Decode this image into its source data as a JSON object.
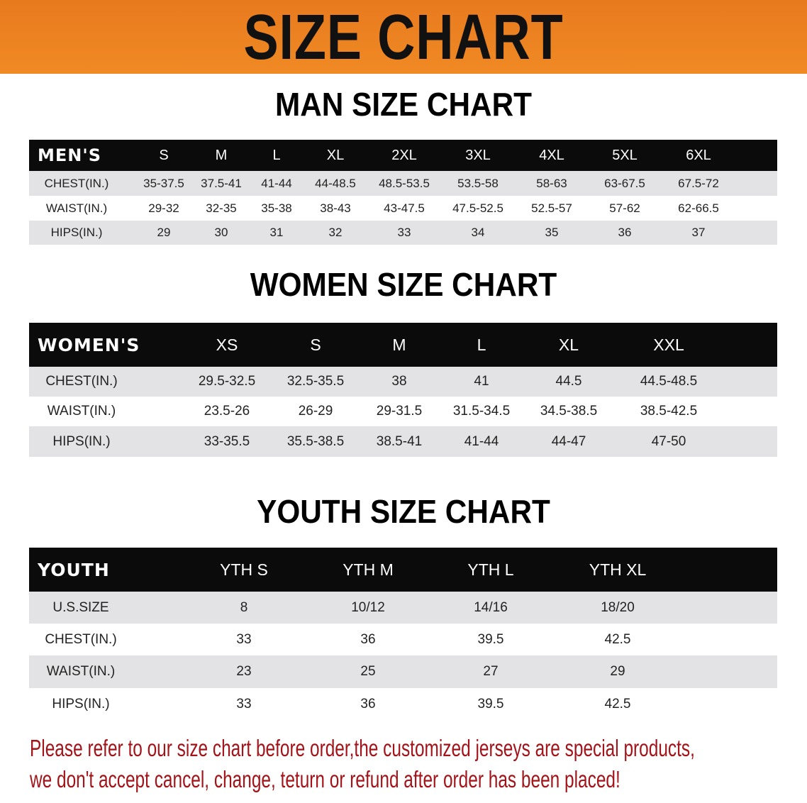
{
  "banner_title": "SIZE CHART",
  "men": {
    "title": "MAN SIZE CHART",
    "corner": "MEN'S",
    "sizes": [
      "S",
      "M",
      "L",
      "XL",
      "2XL",
      "3XL",
      "4XL",
      "5XL",
      "6XL"
    ],
    "rows": [
      {
        "label": "CHEST(IN.)",
        "values": [
          "35-37.5",
          "37.5-41",
          "41-44",
          "44-48.5",
          "48.5-53.5",
          "53.5-58",
          "58-63",
          "63-67.5",
          "67.5-72"
        ]
      },
      {
        "label": "WAIST(IN.)",
        "values": [
          "29-32",
          "32-35",
          "35-38",
          "38-43",
          "43-47.5",
          "47.5-52.5",
          "52.5-57",
          "57-62",
          "62-66.5"
        ]
      },
      {
        "label": "HIPS(IN.)",
        "values": [
          "29",
          "30",
          "31",
          "32",
          "33",
          "34",
          "35",
          "36",
          "37"
        ]
      }
    ]
  },
  "women": {
    "title": "WOMEN SIZE CHART",
    "corner": "WOMEN'S",
    "sizes": [
      "XS",
      "S",
      "M",
      "L",
      "XL",
      "XXL"
    ],
    "rows": [
      {
        "label": "CHEST(IN.)",
        "values": [
          "29.5-32.5",
          "32.5-35.5",
          "38",
          "41",
          "44.5",
          "44.5-48.5"
        ]
      },
      {
        "label": "WAIST(IN.)",
        "values": [
          "23.5-26",
          "26-29",
          "29-31.5",
          "31.5-34.5",
          "34.5-38.5",
          "38.5-42.5"
        ]
      },
      {
        "label": "HIPS(IN.)",
        "values": [
          "33-35.5",
          "35.5-38.5",
          "38.5-41",
          "41-44",
          "44-47",
          "47-50"
        ]
      }
    ]
  },
  "youth": {
    "title": "YOUTH SIZE CHART",
    "corner": "YOUTH",
    "sizes": [
      "YTH S",
      "YTH M",
      "YTH L",
      "YTH XL"
    ],
    "rows": [
      {
        "label": "U.S.SIZE",
        "values": [
          "8",
          "10/12",
          "14/16",
          "18/20"
        ]
      },
      {
        "label": "CHEST(IN.)",
        "values": [
          "33",
          "36",
          "39.5",
          "42.5"
        ]
      },
      {
        "label": "WAIST(IN.)",
        "values": [
          "23",
          "25",
          "27",
          "29"
        ]
      },
      {
        "label": "HIPS(IN.)",
        "values": [
          "33",
          "36",
          "39.5",
          "42.5"
        ]
      }
    ]
  },
  "note": {
    "line1": "Please refer to our size chart before order,the customized jerseys are special products,",
    "line2": "we don't accept cancel, change, teturn or refund after order has been placed!"
  },
  "colors": {
    "banner": "#ee8322",
    "header_bg": "#0b0b0b",
    "row_gray": "#e3e3e5",
    "note": "#a3141a"
  }
}
